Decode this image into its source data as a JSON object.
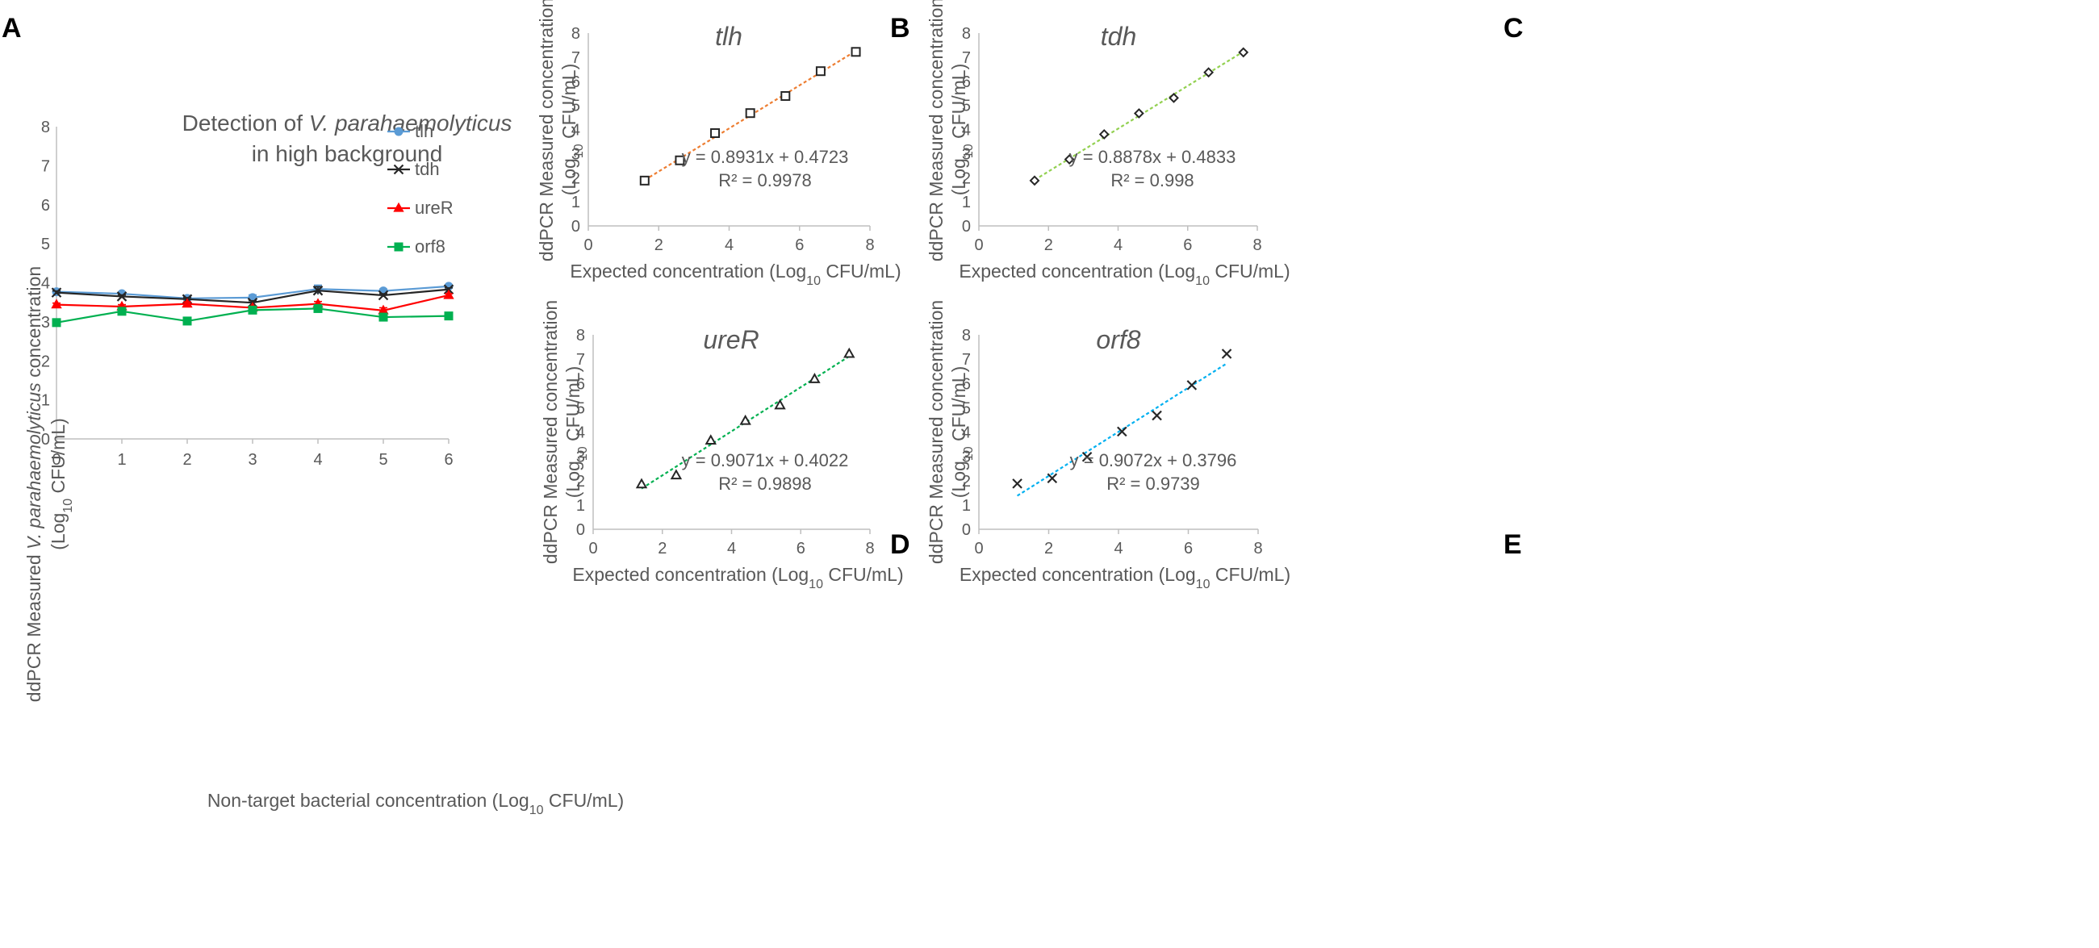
{
  "chart_data": [
    {
      "panel": "A",
      "type": "line",
      "title": "Detection of V. parahaemolyticus in high background",
      "title_line1_prefix": "Detection of ",
      "title_line1_italic": "V. parahaemolyticus",
      "title_line2": "in high background",
      "xlabel": "Non-target  bacterial concentration  (Log10 CFU/mL)",
      "xlabel_pre": "Non-target  bacterial concentration  (Log",
      "xlabel_sub": "10",
      "xlabel_post": " CFU/mL)",
      "ylabel": "ddPCR Measured V. parahaemolyticus concentration (Log10 CFU/mL)",
      "ylabel_l1_pre": "ddPCR Measured  ",
      "ylabel_l1_italic": "V. parahaemolyticus",
      "ylabel_l1_post": "  concentration",
      "ylabel_l2_pre": "(Log",
      "ylabel_l2_sub": "10",
      "ylabel_l2_post": " CFU/mL)",
      "xlim": [
        0,
        6
      ],
      "ylim": [
        0,
        8
      ],
      "xticks": [
        "0",
        "1",
        "2",
        "3",
        "4",
        "5",
        "6"
      ],
      "yticks": [
        "0",
        "1",
        "2",
        "3",
        "4",
        "5",
        "6",
        "7",
        "8"
      ],
      "x": [
        0,
        1,
        2,
        3,
        4,
        5,
        6
      ],
      "series": [
        {
          "name": "tlh",
          "marker": "circle",
          "color": "#5B9BD5",
          "values": [
            3.77,
            3.72,
            3.6,
            3.62,
            3.84,
            3.79,
            3.91
          ],
          "err": [
            0.04,
            0.04,
            0.04,
            0.07,
            0.1,
            0.05,
            0.04
          ]
        },
        {
          "name": "tdh",
          "marker": "x",
          "color": "#262626",
          "values": [
            3.75,
            3.65,
            3.58,
            3.49,
            3.8,
            3.68,
            3.83
          ],
          "err": [
            0.04,
            0.04,
            0.04,
            0.05,
            0.1,
            0.04,
            0.04
          ]
        },
        {
          "name": "ureR",
          "marker": "triangle",
          "color": "#FF0000",
          "values": [
            3.44,
            3.39,
            3.46,
            3.36,
            3.46,
            3.29,
            3.68
          ],
          "err": [
            0.04,
            0.05,
            0.05,
            0.04,
            0.06,
            0.07,
            0.04
          ]
        },
        {
          "name": "orf8",
          "marker": "square",
          "color": "#00B050",
          "values": [
            2.98,
            3.27,
            3.02,
            3.3,
            3.34,
            3.12,
            3.15
          ],
          "err": [
            0.03,
            0.05,
            0.03,
            0.03,
            0.04,
            0.03,
            0.03
          ]
        }
      ]
    },
    {
      "panel": "B",
      "type": "scatter",
      "title": "tlh",
      "xlabel": "Expected concentration (Log10 CFU/mL)",
      "ylabel": "ddPCR Measured concentration (Log10 CFU/mL)",
      "xlim": [
        0,
        8
      ],
      "ylim": [
        0,
        8
      ],
      "xticks": [
        "0",
        "2",
        "4",
        "6",
        "8"
      ],
      "yticks": [
        "0",
        "1",
        "2",
        "3",
        "4",
        "5",
        "6",
        "7",
        "8"
      ],
      "marker": "square",
      "trend_color": "#ED7D31",
      "x": [
        1.6,
        2.6,
        3.6,
        4.6,
        5.6,
        6.6,
        7.6
      ],
      "y": [
        1.88,
        2.72,
        3.85,
        4.68,
        5.39,
        6.42,
        7.22
      ],
      "fit": {
        "slope": 0.8931,
        "intercept": 0.4723,
        "r2": 0.9978
      },
      "equation": "y = 0.8931x + 0.4723",
      "r2_text": "R² = 0.9978"
    },
    {
      "panel": "C",
      "type": "scatter",
      "title": "tdh",
      "xlabel": "Expected concentration (Log10 CFU/mL)",
      "ylabel": "ddPCR Measured concentration (Log10 CFU/mL)",
      "xlim": [
        0,
        8
      ],
      "ylim": [
        0,
        8
      ],
      "xticks": [
        "0",
        "2",
        "4",
        "6",
        "8"
      ],
      "yticks": [
        "0",
        "1",
        "2",
        "3",
        "4",
        "5",
        "6",
        "7",
        "8"
      ],
      "marker": "diamond",
      "trend_color": "#92D050",
      "x": [
        1.6,
        2.6,
        3.6,
        4.6,
        5.6,
        6.6,
        7.6
      ],
      "y": [
        1.88,
        2.76,
        3.8,
        4.67,
        5.31,
        6.37,
        7.2
      ],
      "fit": {
        "slope": 0.8878,
        "intercept": 0.4833,
        "r2": 0.998
      },
      "equation": "y = 0.8878x + 0.4833",
      "r2_text": "R² = 0.998"
    },
    {
      "panel": "D",
      "type": "scatter",
      "title": "ureR",
      "xlabel": "Expected concentration (Log10 CFU/mL)",
      "ylabel": "ddPCR Measured concentration (Log10 CFU/mL)",
      "xlim": [
        0,
        8
      ],
      "ylim": [
        0,
        8
      ],
      "xticks": [
        "0",
        "2",
        "4",
        "6",
        "8"
      ],
      "yticks": [
        "0",
        "1",
        "2",
        "3",
        "4",
        "5",
        "6",
        "7",
        "8"
      ],
      "marker": "triangle",
      "trend_color": "#00B050",
      "x": [
        1.4,
        2.4,
        3.4,
        4.4,
        5.4,
        6.4,
        7.4
      ],
      "y": [
        1.85,
        2.22,
        3.65,
        4.46,
        5.1,
        6.18,
        7.22
      ],
      "fit": {
        "slope": 0.9071,
        "intercept": 0.4022,
        "r2": 0.9898
      },
      "equation": "y = 0.9071x + 0.4022",
      "r2_text": "R² = 0.9898"
    },
    {
      "panel": "E",
      "type": "scatter",
      "title": "orf8",
      "xlabel": "Expected concentration (Log10 CFU/mL)",
      "ylabel": "ddPCR Measured concentration (Log10 CFU/mL)",
      "xlim": [
        0,
        8
      ],
      "ylim": [
        0,
        8
      ],
      "xticks": [
        "0",
        "2",
        "4",
        "6",
        "8"
      ],
      "yticks": [
        "0",
        "1",
        "2",
        "3",
        "4",
        "5",
        "6",
        "7",
        "8"
      ],
      "marker": "x",
      "trend_color": "#00B0F0",
      "x": [
        1.1,
        2.1,
        3.1,
        4.1,
        5.1,
        6.1,
        7.1
      ],
      "y": [
        1.88,
        2.1,
        2.98,
        4.02,
        4.68,
        5.93,
        7.22
      ],
      "fit": {
        "slope": 0.9072,
        "intercept": 0.3796,
        "r2": 0.9739
      },
      "equation": "y = 0.9072x + 0.3796",
      "r2_text": "R² = 0.9739"
    }
  ],
  "common": {
    "xlabel_pre": "Expected concentration (Log",
    "xlabel_sub": "10",
    "xlabel_post": " CFU/mL)",
    "ylabel_l1": "ddPCR Measured concentration",
    "ylabel_l2_pre": "(Log",
    "ylabel_l2_sub": "10",
    "ylabel_l2_post": " CFU/mL)"
  }
}
